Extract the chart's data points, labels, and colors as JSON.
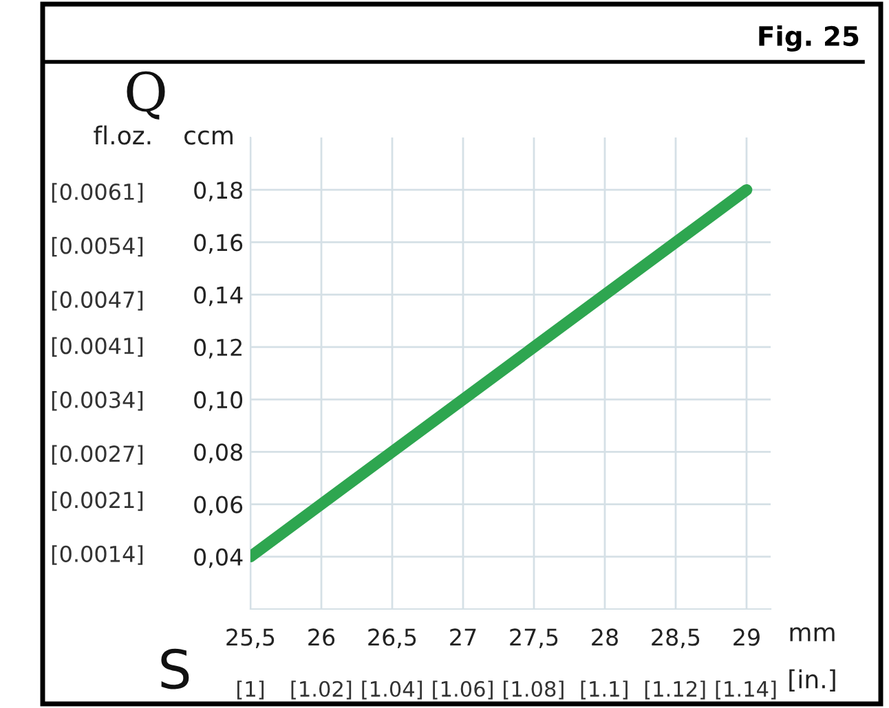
{
  "chart_data": {
    "type": "line",
    "title": "Fig. 25",
    "x": [
      25.5,
      29
    ],
    "series": [
      {
        "color": "#2ea650",
        "values": [
          0.04,
          0.18
        ]
      }
    ],
    "xlim": [
      25.5,
      29.17
    ],
    "xticks": [
      {
        "value": 25.5,
        "label": "25,5"
      },
      26,
      {
        "value": 26.5,
        "label": "26,5"
      },
      27,
      {
        "value": 27.5,
        "label": "27,5"
      },
      28,
      {
        "value": 28.5,
        "label": "28,5"
      },
      29
    ],
    "ylim": [
      0.02,
      0.2
    ],
    "yticks": [
      {
        "value": 0.04,
        "label": "0,04"
      },
      {
        "value": 0.06,
        "label": "0,06"
      },
      {
        "value": 0.08,
        "label": "0,08"
      },
      {
        "value": 0.1,
        "label": "0,10"
      },
      {
        "value": 0.12,
        "label": "0,12"
      },
      {
        "value": 0.14,
        "label": "0,14"
      },
      {
        "value": 0.16,
        "label": "0,16"
      },
      {
        "value": 0.18,
        "label": "0,18"
      }
    ],
    "x2lim": [
      1.0,
      1.147
    ],
    "x2ticks": [
      {
        "value": 1.0,
        "label": "[1]"
      },
      {
        "value": 1.02,
        "label": "[1.02]"
      },
      {
        "value": 1.04,
        "label": "[1.04]"
      },
      {
        "value": 1.06,
        "label": "[1.06]"
      },
      {
        "value": 1.08,
        "label": "[1.08]"
      },
      {
        "value": 1.1,
        "label": "[1.1]"
      },
      {
        "value": 1.12,
        "label": "[1.12]"
      },
      {
        "value": 1.14,
        "label": "[1.14]"
      }
    ],
    "y2lim": [
      0.00068,
      0.0068
    ],
    "y2ticks": [
      {
        "value": 0.0014,
        "label": "[0.0014]"
      },
      {
        "value": 0.0021,
        "label": "[0.0021]"
      },
      {
        "value": 0.0027,
        "label": "[0.0027]"
      },
      {
        "value": 0.0034,
        "label": "[0.0034]"
      },
      {
        "value": 0.0041,
        "label": "[0.0041]"
      },
      {
        "value": 0.0047,
        "label": "[0.0047]"
      },
      {
        "value": 0.0054,
        "label": "[0.0054]"
      },
      {
        "value": 0.0061,
        "label": "[0.0061]"
      }
    ],
    "xlabel": "mm",
    "x2label": "[in.]",
    "ylabel": "ccm",
    "y2label": "fl.oz.",
    "annotations": [
      "Q",
      "S"
    ],
    "grid": true,
    "marker": "none",
    "line_style": "solid",
    "legend": false
  }
}
